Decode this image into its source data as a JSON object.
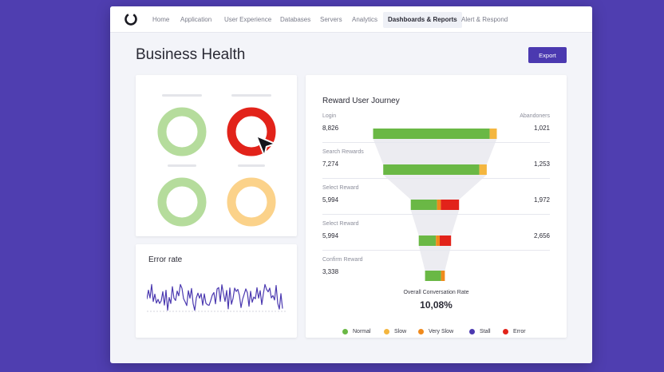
{
  "nav": {
    "items": [
      {
        "label": "Home"
      },
      {
        "label": "Application"
      },
      {
        "label": "User Experience"
      },
      {
        "label": "Databases"
      },
      {
        "label": "Servers"
      },
      {
        "label": "Analytics"
      },
      {
        "label": "Dashboards & Reports",
        "active": true
      },
      {
        "label": "Alert & Respond"
      }
    ]
  },
  "page": {
    "title": "Business Health",
    "export_label": "Export"
  },
  "status_card": {
    "donuts": [
      {
        "status": "normal",
        "color": "#b5dc9c"
      },
      {
        "status": "error",
        "color": "#e2231a"
      },
      {
        "status": "normal",
        "color": "#b5dc9c"
      },
      {
        "status": "slow",
        "color": "#fbd28a"
      }
    ]
  },
  "error_card": {
    "title": "Error rate",
    "line_color": "#4b39b0"
  },
  "journey": {
    "title": "Reward User Journey",
    "abandoners_header": "Abandoners",
    "steps": [
      {
        "label": "Login",
        "users": "8,826",
        "abandoners": "1,021",
        "normal": 8826,
        "slow": 540,
        "verySlow": 0,
        "error": 0
      },
      {
        "label": "Search Rewards",
        "users": "7,274",
        "abandoners": "1,253",
        "normal": 7274,
        "slow": 560,
        "verySlow": 0,
        "error": 0
      },
      {
        "label": "Select Reward",
        "users": "5,994",
        "abandoners": "1,972",
        "normal": 1990,
        "slow": 0,
        "verySlow": 290,
        "error": 1380
      },
      {
        "label": "Select Reward",
        "users": "5,994",
        "abandoners": "2,656",
        "normal": 1300,
        "slow": 0,
        "verySlow": 290,
        "error": 860
      },
      {
        "label": "Confirm Reward",
        "users": "3,338",
        "abandoners": "",
        "normal": 1210,
        "slow": 0,
        "verySlow": 290,
        "error": 0
      }
    ],
    "overall_label": "Overall Conversation Rate",
    "overall_value": "10,08%",
    "legend": [
      {
        "name": "Normal",
        "color": "#6ab845"
      },
      {
        "name": "Slow",
        "color": "#f4b63f"
      },
      {
        "name": "Very Slow",
        "color": "#f08a1c"
      },
      {
        "name": "Stall",
        "color": "#4b39b0"
      },
      {
        "name": "Error",
        "color": "#e2231a"
      }
    ]
  }
}
